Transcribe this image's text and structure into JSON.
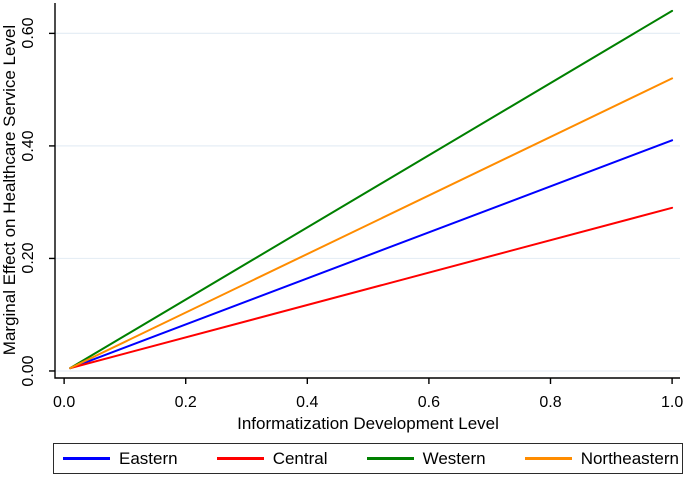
{
  "chart_data": {
    "type": "line",
    "title": "",
    "xlabel": "Informatization Development Level",
    "ylabel": "Marginal Effect on Healthcare Service Level",
    "xlim": [
      -0.015,
      1.013
    ],
    "ylim": [
      -0.0125,
      0.654
    ],
    "x_ticks": [
      0.0,
      0.2,
      0.4,
      0.6,
      0.8,
      1.0
    ],
    "x_tick_labels": [
      "0.0",
      "0.2",
      "0.4",
      "0.6",
      "0.8",
      "1.0"
    ],
    "y_ticks": [
      0.0,
      0.2,
      0.4,
      0.6
    ],
    "y_tick_labels": [
      "0.00",
      "0.20",
      "0.40",
      "0.60"
    ],
    "grid": "horizontal-only",
    "gridline_color": "#e6eef5",
    "axis_color": "#000000",
    "legend_position": "bottom",
    "series": [
      {
        "name": "Eastern",
        "color": "#0000ff",
        "x": [
          0.01,
          1.0
        ],
        "y": [
          0.005,
          0.41
        ]
      },
      {
        "name": "Central",
        "color": "#ff0000",
        "x": [
          0.01,
          1.0
        ],
        "y": [
          0.005,
          0.29
        ]
      },
      {
        "name": "Western",
        "color": "#008000",
        "x": [
          0.01,
          1.0
        ],
        "y": [
          0.005,
          0.64
        ]
      },
      {
        "name": "Northeastern",
        "color": "#ff8c00",
        "x": [
          0.01,
          1.0
        ],
        "y": [
          0.005,
          0.52
        ]
      }
    ]
  }
}
